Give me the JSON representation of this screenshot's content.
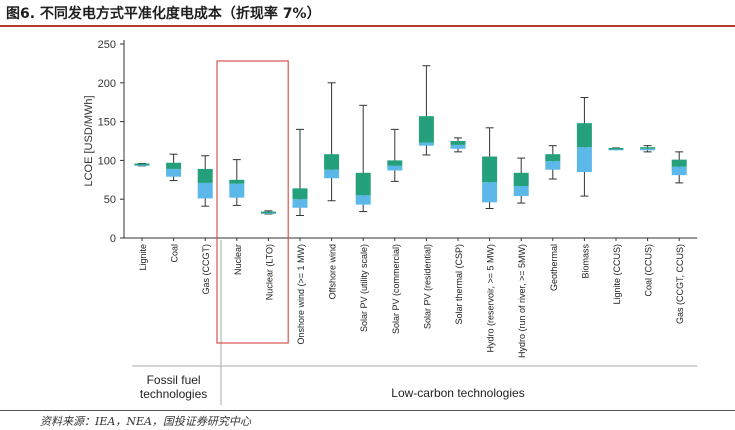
{
  "title": "图6. 不同发电方式平准化度电成本（折现率 7%）",
  "source": "资料来源：IEA，NEA，国投证券研究中心",
  "chart_data": {
    "type": "box",
    "ylabel": "LCOE [USD/MWh]",
    "ylim": [
      0,
      250
    ],
    "yticks": [
      0,
      50,
      100,
      150,
      200,
      250
    ],
    "grid": false,
    "colors": {
      "upper_box": "#25a07c",
      "lower_box": "#5bb8e8",
      "whisker": "#333333",
      "highlight": "#d9534f",
      "divider": "#aaaaaa"
    },
    "groups": [
      {
        "label": "Fossil fuel\ntechnologies",
        "lines": [
          "Fossil fuel",
          "technologies"
        ],
        "from": 0,
        "to": 2
      },
      {
        "label": "Low-carbon technologies",
        "lines": [
          "Low-carbon technologies"
        ],
        "from": 3,
        "to": 17
      }
    ],
    "highlight_range": [
      3,
      4
    ],
    "categories": [
      {
        "name": "Lignite",
        "min": 93,
        "q1": 93,
        "median": 95,
        "q3": 96,
        "max": 96
      },
      {
        "name": "Coal",
        "min": 74,
        "q1": 79,
        "median": 89,
        "q3": 97,
        "max": 108
      },
      {
        "name": "Gas (CCGT)",
        "min": 41,
        "q1": 51,
        "median": 71,
        "q3": 89,
        "max": 106
      },
      {
        "name": "Nuclear",
        "min": 42,
        "q1": 52,
        "median": 70,
        "q3": 75,
        "max": 101
      },
      {
        "name": "Nuclear (LTO)",
        "min": 31,
        "q1": 32,
        "median": 33,
        "q3": 34,
        "max": 35
      },
      {
        "name": "Onshore wind (>= 1 MW)",
        "min": 29,
        "q1": 39,
        "median": 50,
        "q3": 64,
        "max": 140
      },
      {
        "name": "Offshore wind",
        "min": 48,
        "q1": 77,
        "median": 88,
        "q3": 108,
        "max": 200
      },
      {
        "name": "Solar PV (utility scale)",
        "min": 34,
        "q1": 43,
        "median": 55,
        "q3": 84,
        "max": 171
      },
      {
        "name": "Solar PV (commercial)",
        "min": 73,
        "q1": 87,
        "median": 93,
        "q3": 100,
        "max": 140
      },
      {
        "name": "Solar PV (residential)",
        "min": 107,
        "q1": 119,
        "median": 123,
        "q3": 157,
        "max": 222
      },
      {
        "name": "Solar thermal (CSP)",
        "min": 111,
        "q1": 115,
        "median": 120,
        "q3": 125,
        "max": 129
      },
      {
        "name": "Hydro (reservoir, >= 5 MW)",
        "min": 38,
        "q1": 46,
        "median": 72,
        "q3": 105,
        "max": 142
      },
      {
        "name": "Hydro (run of river, >= 5MW)",
        "min": 45,
        "q1": 54,
        "median": 67,
        "q3": 84,
        "max": 103
      },
      {
        "name": "Geothermal",
        "min": 76,
        "q1": 88,
        "median": 99,
        "q3": 108,
        "max": 119
      },
      {
        "name": "Biomass",
        "min": 54,
        "q1": 85,
        "median": 117,
        "q3": 148,
        "max": 181
      },
      {
        "name": "Lignite (CCUS)",
        "min": 115,
        "q1": 115,
        "median": 115,
        "q3": 116,
        "max": 116
      },
      {
        "name": "Coal (CCUS)",
        "min": 111,
        "q1": 113,
        "median": 115,
        "q3": 117,
        "max": 119
      },
      {
        "name": "Gas (CCGT, CCUS)",
        "min": 71,
        "q1": 81,
        "median": 92,
        "q3": 101,
        "max": 111
      }
    ]
  }
}
